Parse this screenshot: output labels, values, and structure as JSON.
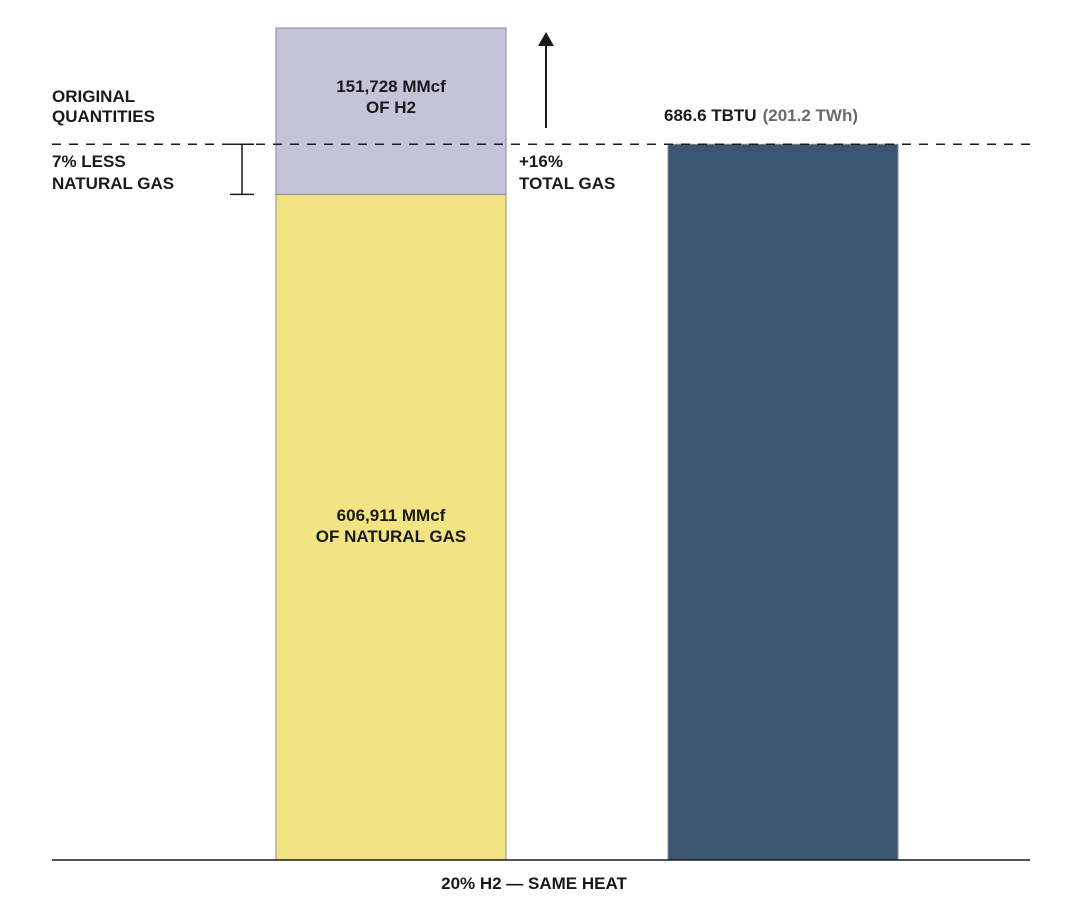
{
  "chart_data": {
    "type": "bar",
    "title": "",
    "xlabel": "20% H2 — SAME HEAT",
    "ylabel": "",
    "categories": [
      "",
      ""
    ],
    "ylim": [
      0,
      758639
    ],
    "stacked_bar": {
      "segments": [
        {
          "value_mmcf": 606911,
          "line1": "606,911 MMcf",
          "line2": "OF NATURAL GAS",
          "color": "#f2e482"
        },
        {
          "value_mmcf": 151728,
          "line1": "151,728 MMcf",
          "line2": "OF H2",
          "color": "#c4c3d9"
        }
      ]
    },
    "reference_bar": {
      "energy_label": "686.6 TBTU",
      "energy_alt_label": "(201.2 TWh)",
      "color": "#3d5570"
    },
    "annotations": {
      "original_quantities": [
        "ORIGINAL",
        "QUANTITIES"
      ],
      "less_natural_gas": [
        "7% LESS",
        "NATURAL GAS"
      ],
      "total_gas_change": [
        "+16%",
        "TOTAL GAS"
      ]
    }
  }
}
